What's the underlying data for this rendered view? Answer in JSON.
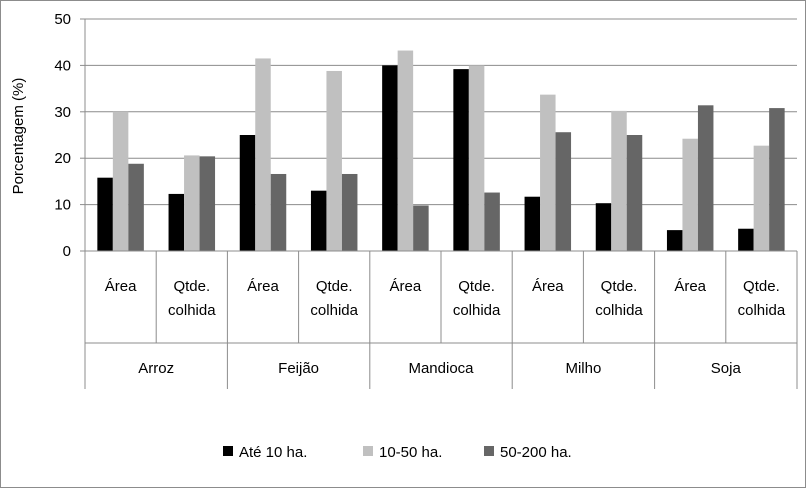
{
  "chart_data": {
    "type": "bar",
    "title": "",
    "ylabel": "Porcentagem (%)",
    "xlabel": "",
    "ylim": [
      0,
      50
    ],
    "yticks": [
      0,
      10,
      20,
      30,
      40,
      50
    ],
    "grid": true,
    "legend_position": "bottom",
    "groups": [
      "Arroz",
      "Feijão",
      "Mandioca",
      "Milho",
      "Soja"
    ],
    "subcategories": [
      [
        "Área"
      ],
      [
        "Qtde.",
        "colhida"
      ]
    ],
    "categories": [
      "Arroz - Área",
      "Arroz - Qtde. colhida",
      "Feijão - Área",
      "Feijão - Qtde. colhida",
      "Mandioca - Área",
      "Mandioca - Qtde. colhida",
      "Milho - Área",
      "Milho - Qtde. colhida",
      "Soja - Área",
      "Soja - Qtde. colhida"
    ],
    "series": [
      {
        "name": "Até 10 ha.",
        "color": "#000000",
        "values": [
          15.8,
          12.3,
          25.0,
          13.0,
          40.0,
          39.2,
          11.7,
          10.3,
          4.5,
          4.8
        ]
      },
      {
        "name": "10-50 ha.",
        "color": "#c0c0c0",
        "values": [
          30.0,
          20.6,
          41.5,
          38.8,
          43.2,
          40.0,
          33.7,
          30.2,
          24.2,
          22.7
        ]
      },
      {
        "name": "50-200 ha.",
        "color": "#666666",
        "values": [
          18.8,
          20.4,
          16.6,
          16.6,
          9.8,
          12.6,
          25.6,
          25.0,
          31.4,
          30.8
        ]
      }
    ]
  }
}
